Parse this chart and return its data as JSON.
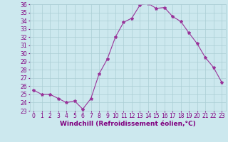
{
  "x": [
    0,
    1,
    2,
    3,
    4,
    5,
    6,
    7,
    8,
    9,
    10,
    11,
    12,
    13,
    14,
    15,
    16,
    17,
    18,
    19,
    20,
    21,
    22,
    23
  ],
  "y": [
    25.5,
    25.0,
    25.0,
    24.5,
    24.0,
    24.2,
    23.2,
    24.5,
    27.5,
    29.3,
    32.0,
    33.8,
    34.3,
    35.9,
    36.1,
    35.5,
    35.6,
    34.5,
    33.9,
    32.5,
    31.2,
    29.5,
    28.3,
    26.5
  ],
  "line_color": "#993399",
  "marker": "*",
  "bg_color": "#cce8ee",
  "grid_color": "#aacdd4",
  "xlabel": "Windchill (Refroidissement éolien,°C)",
  "ylim": [
    23,
    36
  ],
  "xlim": [
    -0.5,
    23.5
  ],
  "yticks": [
    23,
    24,
    25,
    26,
    27,
    28,
    29,
    30,
    31,
    32,
    33,
    34,
    35,
    36
  ],
  "xticks": [
    0,
    1,
    2,
    3,
    4,
    5,
    6,
    7,
    8,
    9,
    10,
    11,
    12,
    13,
    14,
    15,
    16,
    17,
    18,
    19,
    20,
    21,
    22,
    23
  ],
  "tick_color": "#800080",
  "label_color": "#800080",
  "tick_fontsize": 5.5,
  "xlabel_fontsize": 6.5,
  "linewidth": 0.8,
  "markersize": 3.0
}
